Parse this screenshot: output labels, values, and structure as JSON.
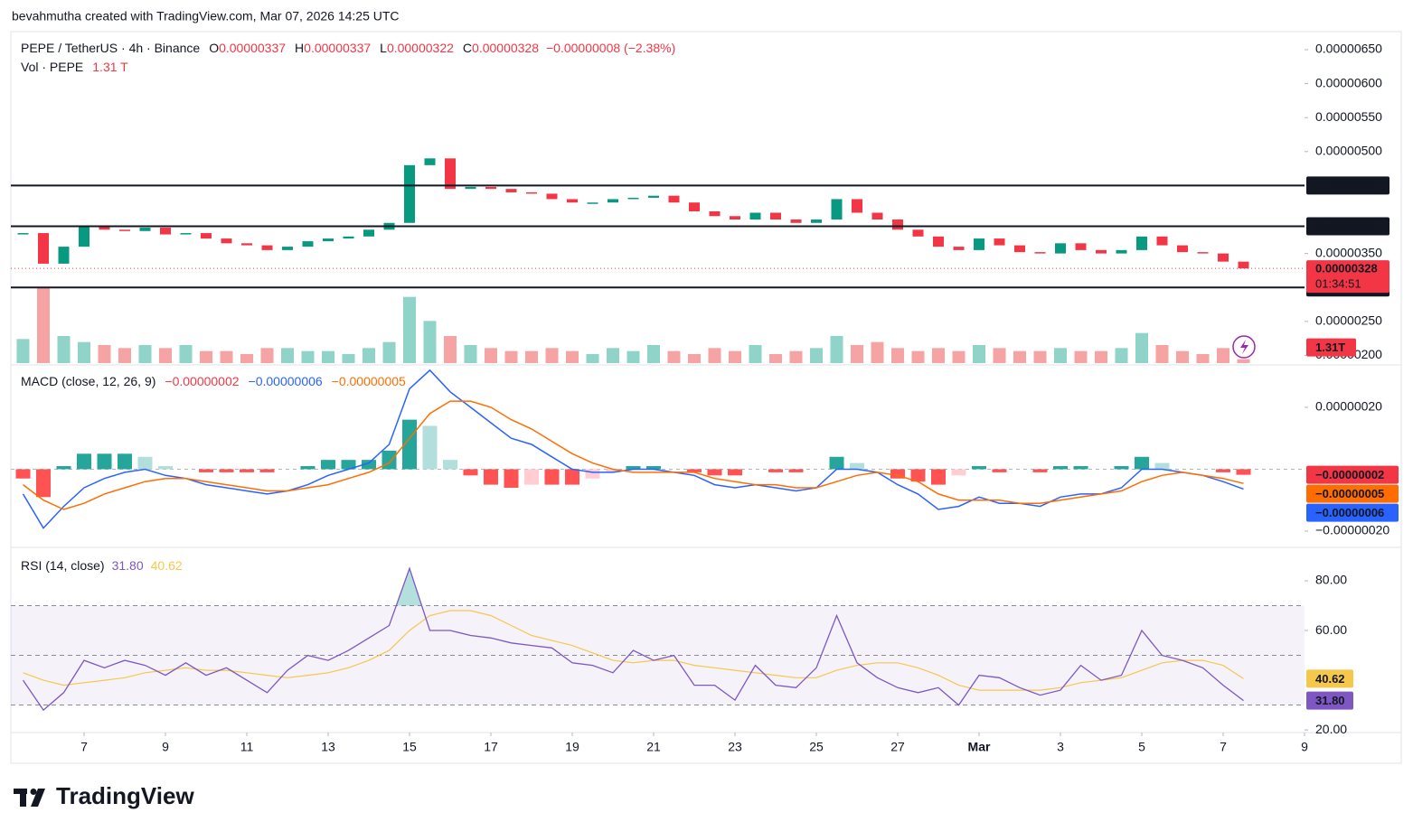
{
  "header": {
    "credit": "bevahmutha created with TradingView.com, Mar 07, 2026 14:25 UTC"
  },
  "footer": {
    "brand": "TradingView"
  },
  "chart_data": [
    {
      "type": "candlestick",
      "title": "PEPE / TetherUS · 4h · Binance",
      "ohlc": [
        {
          "name": "O",
          "value": 3.37e-06,
          "label": "0.00000337"
        },
        {
          "name": "H",
          "value": 3.37e-06,
          "label": "0.00000337"
        },
        {
          "name": "L",
          "value": 3.22e-06,
          "label": "0.00000322"
        },
        {
          "name": "C",
          "value": 3.28e-06,
          "label": "0.00000328"
        }
      ],
      "change": {
        "value": -8e-08,
        "label": "−0.00000008 (−2.38%)"
      },
      "x": [
        5.5,
        6,
        6.5,
        7,
        7.5,
        8,
        8.5,
        9,
        9.5,
        10,
        10.5,
        11,
        11.5,
        12,
        12.5,
        13,
        13.5,
        14,
        14.5,
        15,
        15.5,
        16,
        16.5,
        17,
        17.5,
        18,
        18.5,
        19,
        19.5,
        20,
        20.5,
        21,
        21.5,
        22,
        22.5,
        23,
        23.5,
        24,
        24.5,
        25,
        25.5,
        26,
        26.5,
        27,
        27.5,
        28,
        28.5,
        29,
        29.5,
        30,
        30.5,
        31,
        31.5,
        32,
        32.5,
        33,
        33.5,
        34,
        34.5,
        35,
        35.5
      ],
      "values": [
        3.8e-06,
        3.35e-06,
        3.6e-06,
        3.9e-06,
        3.85e-06,
        3.83e-06,
        3.88e-06,
        3.78e-06,
        3.8e-06,
        3.72e-06,
        3.65e-06,
        3.62e-06,
        3.55e-06,
        3.6e-06,
        3.68e-06,
        3.72e-06,
        3.75e-06,
        3.85e-06,
        3.95e-06,
        4.8e-06,
        4.9e-06,
        4.45e-06,
        4.48e-06,
        4.45e-06,
        4.4e-06,
        4.38e-06,
        4.3e-06,
        4.25e-06,
        4.25e-06,
        4.3e-06,
        4.32e-06,
        4.35e-06,
        4.25e-06,
        4.12e-06,
        4.05e-06,
        4e-06,
        4.1e-06,
        4e-06,
        3.95e-06,
        4e-06,
        4.3e-06,
        4.1e-06,
        4e-06,
        3.85e-06,
        3.75e-06,
        3.6e-06,
        3.55e-06,
        3.72e-06,
        3.62e-06,
        3.52e-06,
        3.5e-06,
        3.65e-06,
        3.55e-06,
        3.5e-06,
        3.55e-06,
        3.75e-06,
        3.62e-06,
        3.52e-06,
        3.5e-06,
        3.38e-06,
        3.28e-06
      ],
      "up_color": "#089981",
      "down_color": "#f23645",
      "xlim": [
        5.2,
        37
      ],
      "ylim": [
        1.886e-06,
        6.766e-06
      ],
      "yticks": [
        {
          "value": 6.5e-06,
          "label": "0.00000650"
        },
        {
          "value": 6e-06,
          "label": "0.00000600"
        },
        {
          "value": 5.5e-06,
          "label": "0.00000550"
        },
        {
          "value": 5e-06,
          "label": "0.00000500"
        },
        {
          "value": 3.5e-06,
          "label": "0.00000350"
        },
        {
          "value": 2.5e-06,
          "label": "0.00000250"
        },
        {
          "value": 2e-06,
          "label": "0.00000200"
        }
      ],
      "levels": [
        {
          "value": 4.5e-06,
          "label": "0.00000450"
        },
        {
          "value": 3.9e-06,
          "label": "0.00000390"
        },
        {
          "value": 3e-06,
          "label": "0.00000300"
        }
      ],
      "current": {
        "value": 3.28e-06,
        "label": "0.00000328",
        "countdown": "01:34:51"
      },
      "volume": {
        "name": "Vol · PEPE",
        "last_label": "1.31 T",
        "axis_label": "1.31T",
        "ylim": [
          0,
          30
        ],
        "up_color": "#8fd3c9",
        "down_color": "#f5a3a3",
        "values": [
          8,
          25,
          9,
          7,
          6,
          5,
          6,
          5,
          6,
          4,
          4,
          3,
          5,
          5,
          4,
          4,
          3,
          5,
          7,
          22,
          14,
          9,
          6,
          5,
          4,
          4,
          5,
          4,
          3,
          5,
          4,
          6,
          4,
          3,
          5,
          4,
          6,
          3,
          4,
          5,
          9,
          6,
          7,
          5,
          4,
          5,
          4,
          6,
          5,
          4,
          4,
          5,
          4,
          4,
          5,
          10,
          6,
          4,
          3,
          5,
          1.31
        ]
      }
    },
    {
      "type": "macd",
      "title": "MACD (close, 12, 26, 9)",
      "x": [
        5.5,
        6,
        6.5,
        7,
        7.5,
        8,
        8.5,
        9,
        9.5,
        10,
        10.5,
        11,
        11.5,
        12,
        12.5,
        13,
        13.5,
        14,
        14.5,
        15,
        15.5,
        16,
        16.5,
        17,
        17.5,
        18,
        18.5,
        19,
        19.5,
        20,
        20.5,
        21,
        21.5,
        22,
        22.5,
        23,
        23.5,
        24,
        24.5,
        25,
        25.5,
        26,
        26.5,
        27,
        27.5,
        28,
        28.5,
        29,
        29.5,
        30,
        30.5,
        31,
        31.5,
        32,
        32.5,
        33,
        33.5,
        34,
        34.5,
        35,
        35.5
      ],
      "xlim": [
        5.2,
        37
      ],
      "ylim": [
        -2.496e-07,
        3.34e-07
      ],
      "yticks": [
        {
          "value": 2e-07,
          "label": "0.00000020"
        },
        {
          "value": -2e-07,
          "label": "−0.00000020"
        }
      ],
      "series": [
        {
          "style": "histogram",
          "colors": [
            "#26a69a",
            "#b2dfdb",
            "#ff5252",
            "#ffcdd2"
          ],
          "color": "#f23645",
          "last_label": "−0.00000002",
          "values": [
            -3e-08,
            -9e-08,
            1e-08,
            5e-08,
            5e-08,
            5e-08,
            4e-08,
            1e-08,
            0,
            -1e-08,
            -1e-08,
            -1e-08,
            -1e-08,
            0,
            1e-08,
            3e-08,
            3e-08,
            3e-08,
            6e-08,
            1.6e-07,
            1.4e-07,
            3e-08,
            -2e-08,
            -5e-08,
            -6e-08,
            -5e-08,
            -5e-08,
            -5e-08,
            -3e-08,
            -1e-08,
            1e-08,
            1e-08,
            0,
            -1e-08,
            -2e-08,
            -2e-08,
            0,
            -1e-08,
            -1e-08,
            0,
            4e-08,
            2e-08,
            0,
            -3e-08,
            -4e-08,
            -5e-08,
            -2e-08,
            1e-08,
            -1e-08,
            0,
            -1e-08,
            1e-08,
            1e-08,
            0,
            1e-08,
            4e-08,
            2e-08,
            0,
            0,
            -1e-08,
            -1.8e-08
          ]
        },
        {
          "style": "line",
          "color": "#2962ff",
          "last_label": "−0.00000006",
          "values": [
            -8e-08,
            -1.9e-07,
            -1.2e-07,
            -6e-08,
            -3e-08,
            -1e-08,
            0,
            -2e-08,
            -3e-08,
            -5e-08,
            -6e-08,
            -7e-08,
            -8e-08,
            -7e-08,
            -5e-08,
            -2e-08,
            0,
            2e-08,
            8e-08,
            2.6e-07,
            3.2e-07,
            2.5e-07,
            2e-07,
            1.5e-07,
            1e-07,
            8e-08,
            4e-08,
            0,
            -1e-08,
            -1e-08,
            0,
            0,
            -1e-08,
            -2e-08,
            -5e-08,
            -6e-08,
            -5e-08,
            -6e-08,
            -7e-08,
            -6e-08,
            0,
            0,
            -1e-08,
            -5e-08,
            -8e-08,
            -1.3e-07,
            -1.2e-07,
            -9e-08,
            -1.1e-07,
            -1.1e-07,
            -1.2e-07,
            -9e-08,
            -8e-08,
            -8e-08,
            -6e-08,
            0,
            0,
            -1e-08,
            -2e-08,
            -4e-08,
            -6.4e-08
          ]
        },
        {
          "style": "line",
          "color": "#ff6d00",
          "last_label": "−0.00000005",
          "values": [
            -5e-08,
            -1e-07,
            -1.3e-07,
            -1.1e-07,
            -8e-08,
            -6e-08,
            -4e-08,
            -3e-08,
            -3e-08,
            -4e-08,
            -5e-08,
            -6e-08,
            -7e-08,
            -7e-08,
            -6e-08,
            -5e-08,
            -3e-08,
            -1e-08,
            2e-08,
            1e-07,
            1.8e-07,
            2.2e-07,
            2.2e-07,
            2e-07,
            1.6e-07,
            1.3e-07,
            9e-08,
            5e-08,
            2e-08,
            0,
            -1e-08,
            -1e-08,
            -1e-08,
            -1e-08,
            -3e-08,
            -4e-08,
            -5e-08,
            -5e-08,
            -6e-08,
            -6e-08,
            -4e-08,
            -2e-08,
            -1e-08,
            -2e-08,
            -4e-08,
            -8e-08,
            -1e-07,
            -1e-07,
            -1e-07,
            -1.1e-07,
            -1.1e-07,
            -1e-07,
            -9e-08,
            -8e-08,
            -7e-08,
            -4e-08,
            -2e-08,
            -1e-08,
            -2e-08,
            -3e-08,
            -4.6e-08
          ]
        }
      ]
    },
    {
      "type": "rsi",
      "title": "RSI (14, close)",
      "x": [
        5.5,
        6,
        6.5,
        7,
        7.5,
        8,
        8.5,
        9,
        9.5,
        10,
        10.5,
        11,
        11.5,
        12,
        12.5,
        13,
        13.5,
        14,
        14.5,
        15,
        15.5,
        16,
        16.5,
        17,
        17.5,
        18,
        18.5,
        19,
        19.5,
        20,
        20.5,
        21,
        21.5,
        22,
        22.5,
        23,
        23.5,
        24,
        24.5,
        25,
        25.5,
        26,
        26.5,
        27,
        27.5,
        28,
        28.5,
        29,
        29.5,
        30,
        30.5,
        31,
        31.5,
        32,
        32.5,
        33,
        33.5,
        34,
        34.5,
        35,
        35.5
      ],
      "xlim": [
        5.2,
        37
      ],
      "ylim": [
        19.3,
        93.1
      ],
      "xticks": [
        7,
        9,
        11,
        13,
        15,
        17,
        19,
        21,
        23,
        25,
        27,
        {
          "value": 29,
          "label": "Mar"
        },
        {
          "value": 31,
          "label": "3"
        },
        {
          "value": 33,
          "label": "5"
        },
        {
          "value": 35,
          "label": "7"
        },
        {
          "value": 37,
          "label": "9"
        }
      ],
      "yticks": [
        {
          "value": 80,
          "label": "80.00"
        },
        {
          "value": 60,
          "label": "60.00"
        },
        {
          "value": 20,
          "label": "20.00"
        }
      ],
      "bands": [
        70,
        50,
        30
      ],
      "band_color": "#7e57c2",
      "overbought_color": "#26a69a",
      "series": [
        {
          "color": "#7e57c2",
          "last_label": "31.80",
          "values": [
            40,
            28,
            35,
            48,
            45,
            48,
            46,
            42,
            47,
            42,
            45,
            40,
            35,
            44,
            50,
            48,
            52,
            57,
            62,
            85,
            60,
            60,
            58,
            57,
            55,
            54,
            53,
            47,
            46,
            43,
            52,
            48,
            50,
            38,
            38,
            32,
            46,
            38,
            37,
            45,
            66,
            47,
            41,
            37,
            35,
            37,
            30,
            42,
            41,
            37,
            34,
            36,
            46,
            40,
            42,
            60,
            50,
            48,
            45,
            38,
            31.8
          ]
        },
        {
          "color": "#f5c84c",
          "last_label": "40.62",
          "values": [
            43,
            40,
            38,
            39,
            40,
            41,
            43,
            44,
            45,
            44,
            44,
            43,
            42,
            41,
            42,
            43,
            45,
            48,
            52,
            60,
            66,
            68,
            68,
            66,
            62,
            58,
            56,
            54,
            51,
            48,
            47,
            48,
            48,
            46,
            45,
            44,
            43,
            42,
            41,
            41,
            44,
            46,
            47,
            47,
            45,
            42,
            38,
            36,
            36,
            36,
            36,
            37,
            39,
            40,
            41,
            44,
            47,
            48,
            48,
            46,
            40.62
          ]
        }
      ]
    }
  ]
}
